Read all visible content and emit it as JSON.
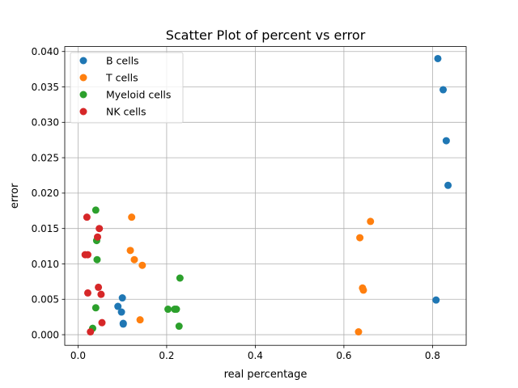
{
  "chart_data": {
    "type": "scatter",
    "title": "Scatter Plot of percent vs error",
    "xlabel": "real percentage",
    "ylabel": "error",
    "xlim": [
      -0.03,
      0.876
    ],
    "ylim": [
      -0.0015,
      0.0407
    ],
    "xticks": [
      0.0,
      0.2,
      0.4,
      0.6,
      0.8
    ],
    "xtick_labels": [
      "0.0",
      "0.2",
      "0.4",
      "0.6",
      "0.8"
    ],
    "yticks": [
      0.0,
      0.005,
      0.01,
      0.015,
      0.02,
      0.025,
      0.03,
      0.035,
      0.04
    ],
    "ytick_labels": [
      "0.000",
      "0.005",
      "0.010",
      "0.015",
      "0.020",
      "0.025",
      "0.030",
      "0.035",
      "0.040"
    ],
    "grid": true,
    "legend_position": "top-left",
    "series": [
      {
        "name": "B cells",
        "color": "#1f77b4",
        "points": [
          [
            0.812,
            0.039
          ],
          [
            0.824,
            0.0346
          ],
          [
            0.831,
            0.0274
          ],
          [
            0.835,
            0.0211
          ],
          [
            0.808,
            0.0049
          ],
          [
            0.1,
            0.0052
          ],
          [
            0.09,
            0.004
          ],
          [
            0.098,
            0.0032
          ],
          [
            0.102,
            0.0016
          ],
          [
            0.102,
            0.0015
          ]
        ]
      },
      {
        "name": "T cells",
        "color": "#ff7f0e",
        "points": [
          [
            0.121,
            0.0166
          ],
          [
            0.66,
            0.016
          ],
          [
            0.636,
            0.0137
          ],
          [
            0.118,
            0.0119
          ],
          [
            0.127,
            0.0106
          ],
          [
            0.145,
            0.0098
          ],
          [
            0.642,
            0.0066
          ],
          [
            0.644,
            0.0063
          ],
          [
            0.14,
            0.0021
          ],
          [
            0.633,
            0.0004
          ]
        ]
      },
      {
        "name": "Myeloid cells",
        "color": "#2ca02c",
        "points": [
          [
            0.04,
            0.0176
          ],
          [
            0.042,
            0.0133
          ],
          [
            0.043,
            0.0106
          ],
          [
            0.23,
            0.008
          ],
          [
            0.04,
            0.0038
          ],
          [
            0.203,
            0.0036
          ],
          [
            0.218,
            0.0036
          ],
          [
            0.222,
            0.0036
          ],
          [
            0.228,
            0.0012
          ],
          [
            0.033,
            0.0009
          ]
        ]
      },
      {
        "name": "NK cells",
        "color": "#d62728",
        "points": [
          [
            0.02,
            0.0166
          ],
          [
            0.048,
            0.015
          ],
          [
            0.044,
            0.0138
          ],
          [
            0.016,
            0.0113
          ],
          [
            0.022,
            0.0113
          ],
          [
            0.046,
            0.0067
          ],
          [
            0.022,
            0.0059
          ],
          [
            0.052,
            0.0057
          ],
          [
            0.054,
            0.0017
          ],
          [
            0.028,
            0.0004
          ]
        ]
      }
    ]
  }
}
